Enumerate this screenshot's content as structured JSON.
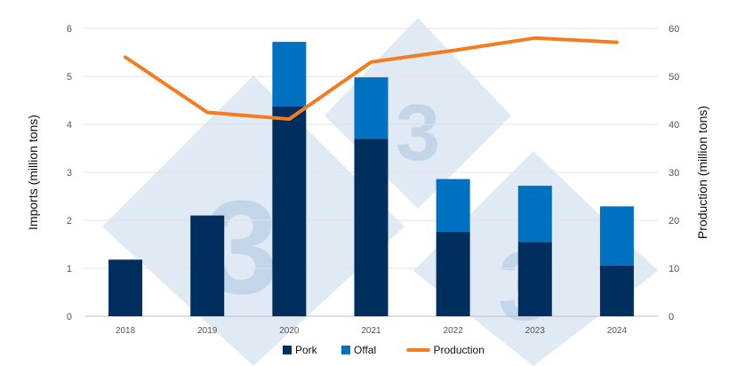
{
  "chart_data": {
    "type": "bar",
    "stacked": true,
    "categories": [
      "2018",
      "2019",
      "2020",
      "2021",
      "2022",
      "2023",
      "2024"
    ],
    "series": [
      {
        "name": "Pork",
        "kind": "bar",
        "axis": "left",
        "color": "#002f5f",
        "values": [
          1.18,
          2.1,
          4.37,
          3.7,
          1.76,
          1.55,
          1.06
        ]
      },
      {
        "name": "Offal",
        "kind": "bar",
        "axis": "left",
        "color": "#0070c0",
        "values": [
          0,
          0,
          1.35,
          1.28,
          1.1,
          1.17,
          1.23
        ]
      },
      {
        "name": "Production",
        "kind": "line",
        "axis": "right",
        "color": "#f47c20",
        "values": [
          54.0,
          42.5,
          41.1,
          53.0,
          55.4,
          58.0,
          57.1
        ]
      }
    ],
    "ylabel": "Imports (million tons)",
    "y2label": "Production (million tons)",
    "ylim": [
      0,
      6
    ],
    "y2lim": [
      0,
      60
    ],
    "yticks": [
      "0",
      "1",
      "2",
      "3",
      "4",
      "5",
      "6"
    ],
    "y2ticks": [
      "0",
      "10",
      "20",
      "30",
      "40",
      "50",
      "60"
    ],
    "grid": true,
    "legend_position": "bottom"
  },
  "watermark": {
    "glyph": "3"
  }
}
